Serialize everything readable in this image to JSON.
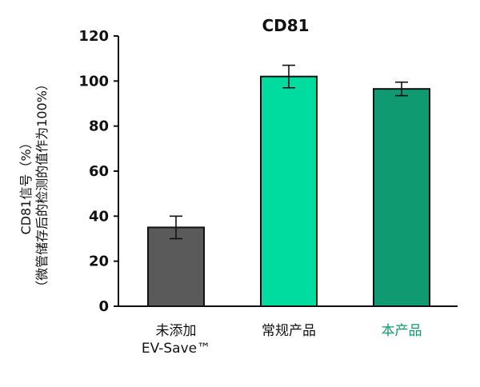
{
  "chart_data": {
    "type": "bar",
    "title": "CD81",
    "ylabel_lines": [
      "CD81信号（%）",
      "（微管储存后的检测的值作为100%）"
    ],
    "xlabel": "",
    "ylim": [
      0,
      120
    ],
    "yticks": [
      0,
      20,
      40,
      60,
      80,
      100,
      120
    ],
    "grid": false,
    "legend": "none",
    "categories": [
      {
        "lines": [
          "未添加",
          "EV-Save™"
        ],
        "label_color": "#111111"
      },
      {
        "lines": [
          "常规产品"
        ],
        "label_color": "#111111"
      },
      {
        "lines": [
          "本产品"
        ],
        "label_color": "#0f9a72"
      }
    ],
    "values": [
      35,
      102,
      96.5
    ],
    "errors": [
      5,
      5,
      3
    ],
    "bar_colors": [
      "#5a5a5a",
      "#00dca0",
      "#0f9a72"
    ]
  }
}
